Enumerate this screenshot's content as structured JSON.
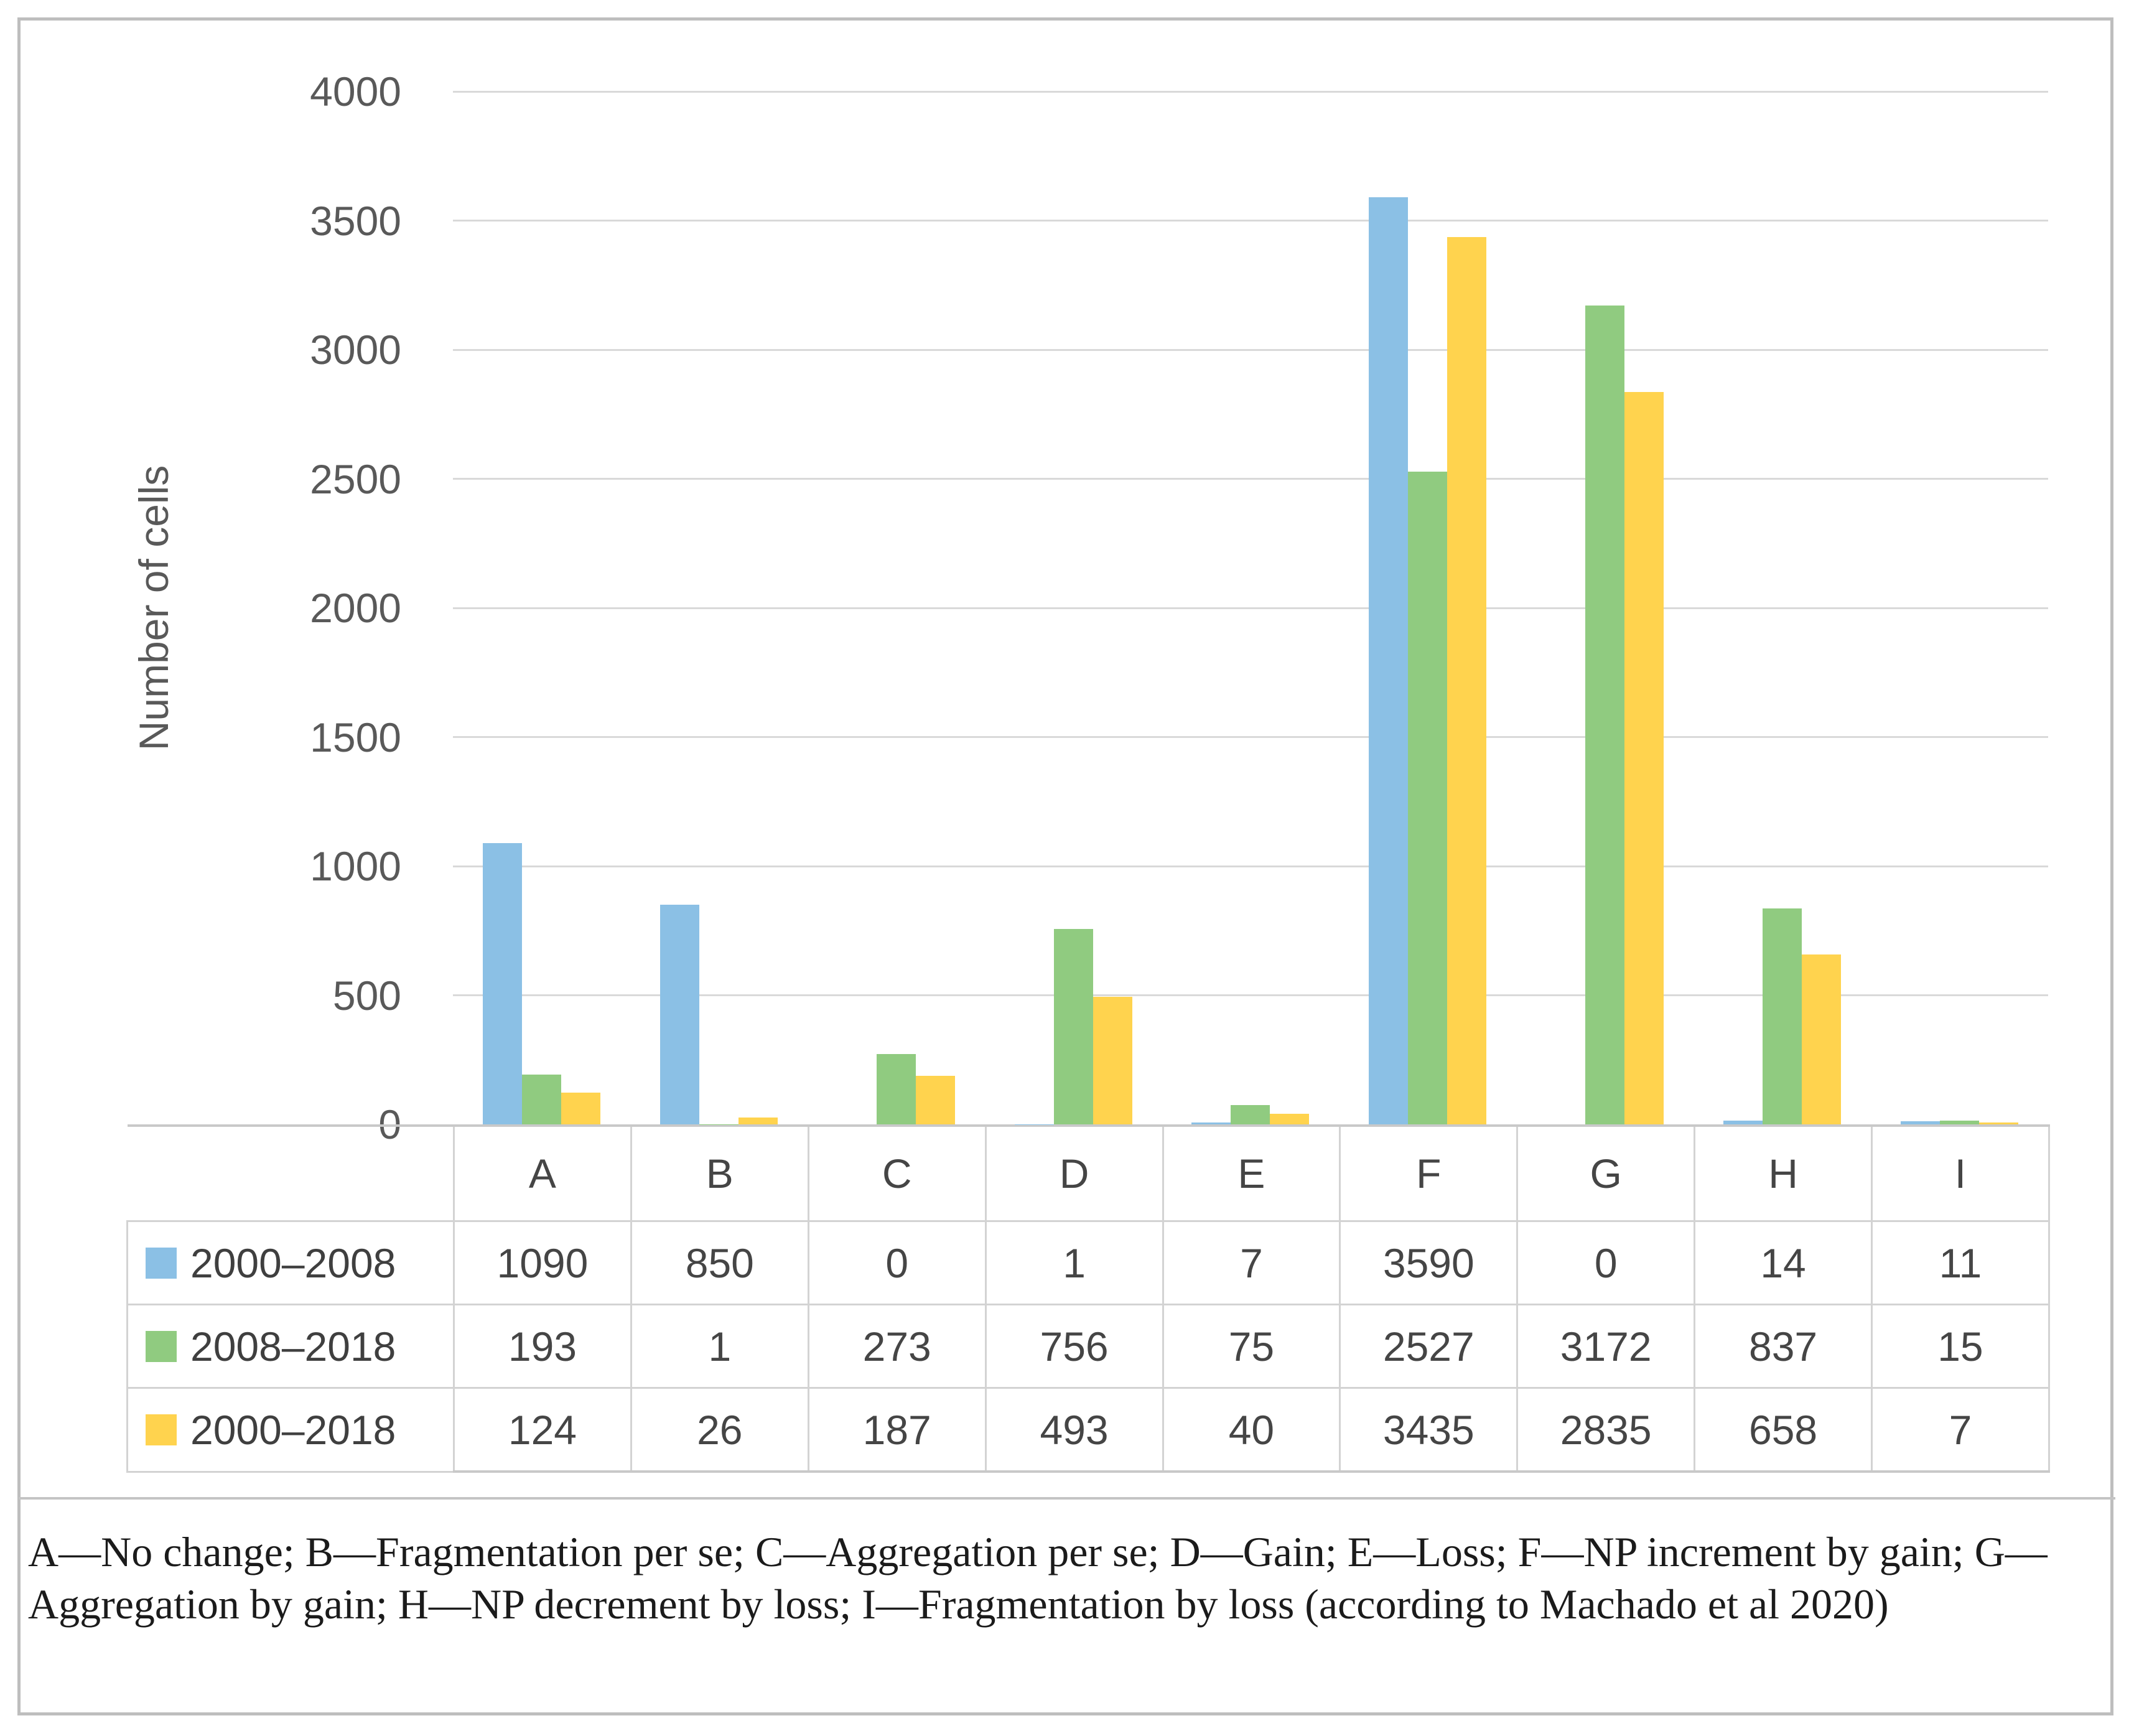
{
  "chart_data": {
    "type": "bar",
    "title": "",
    "ylabel": "Number of cells",
    "xlabel": "",
    "categories": [
      "A",
      "B",
      "C",
      "D",
      "E",
      "F",
      "G",
      "H",
      "I"
    ],
    "series": [
      {
        "name": "2000–2008",
        "color": "#8BC0E5",
        "values": [
          1090,
          850,
          0,
          1,
          7,
          3590,
          0,
          14,
          11
        ]
      },
      {
        "name": "2008–2018",
        "color": "#90CB80",
        "values": [
          193,
          1,
          273,
          756,
          75,
          2527,
          3172,
          837,
          15
        ]
      },
      {
        "name": "2000–2018",
        "color": "#FFD34E",
        "values": [
          124,
          26,
          187,
          493,
          40,
          3435,
          2835,
          658,
          7
        ]
      }
    ],
    "ylim": [
      0,
      4000
    ],
    "yticks": [
      0,
      500,
      1000,
      1500,
      2000,
      2500,
      3000,
      3500,
      4000
    ],
    "grid": true,
    "legend_position": "data-table-row-headers"
  },
  "caption": {
    "text": "A—No change; B—Fragmentation per se; C—Aggregation per se; D—Gain; E—Loss; F—NP increment by gain; G—Aggregation by gain; H—NP decrement by loss; I—Fragmentation by loss (according to Machado et al 2020)"
  },
  "colors": {
    "gridline": "#D9D9D9",
    "axis_text": "#595959",
    "table_text": "#454545",
    "table_border": "#D3D3D3",
    "axis_line": "#C9C9C9",
    "frame_border": "#BEBEBE",
    "background": "#FFFFFF"
  }
}
